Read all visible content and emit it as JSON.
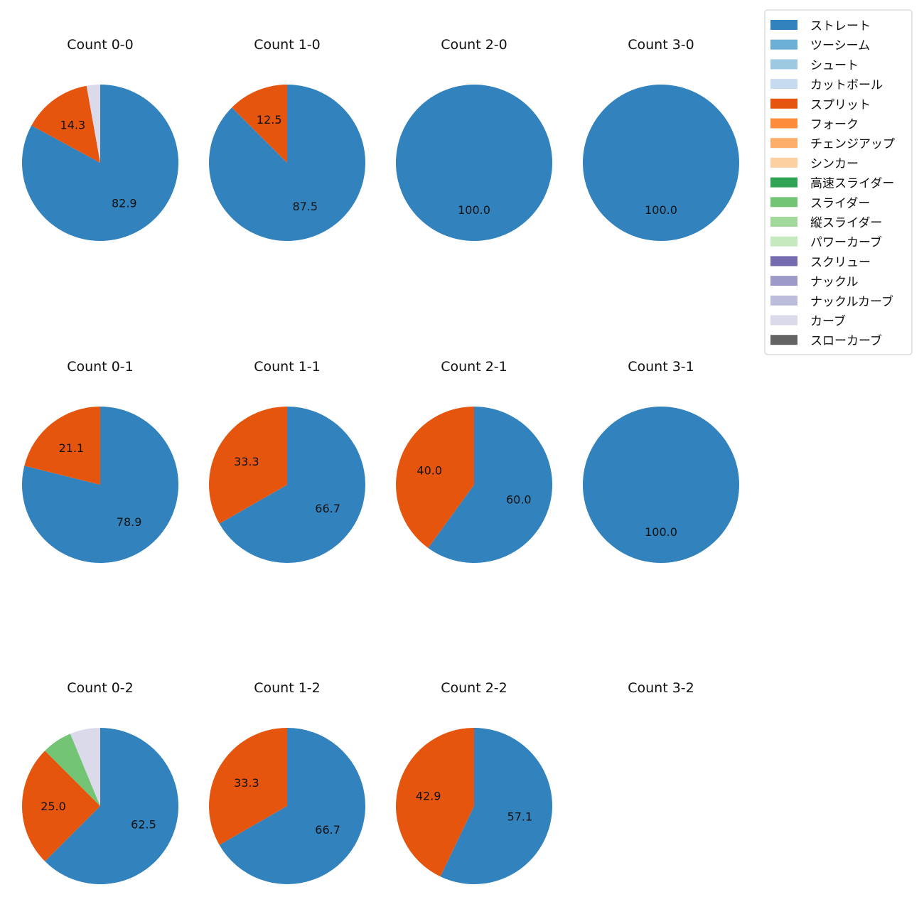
{
  "chart_data": {
    "type": "pie",
    "legend": {
      "placement": "top-right",
      "entries": [
        {
          "name": "ストレート",
          "color": "#3182bd"
        },
        {
          "name": "ツーシーム",
          "color": "#6baed6"
        },
        {
          "name": "シュート",
          "color": "#9ecae1"
        },
        {
          "name": "カットボール",
          "color": "#c6dbef"
        },
        {
          "name": "スプリット",
          "color": "#e6550d"
        },
        {
          "name": "フォーク",
          "color": "#fd8d3c"
        },
        {
          "name": "チェンジアップ",
          "color": "#fdae6b"
        },
        {
          "name": "シンカー",
          "color": "#fdd0a2"
        },
        {
          "name": "高速スライダー",
          "color": "#31a354"
        },
        {
          "name": "スライダー",
          "color": "#74c476"
        },
        {
          "name": "縦スライダー",
          "color": "#a1d99b"
        },
        {
          "name": "パワーカーブ",
          "color": "#c7e9c0"
        },
        {
          "name": "スクリュー",
          "color": "#756bb1"
        },
        {
          "name": "ナックル",
          "color": "#9e9ac8"
        },
        {
          "name": "ナックルカーブ",
          "color": "#bcbddc"
        },
        {
          "name": "カーブ",
          "color": "#dadaeb"
        },
        {
          "name": "スローカーブ",
          "color": "#636363"
        }
      ]
    },
    "charts": [
      {
        "title": "Count 0-0",
        "slices": [
          {
            "pitch": "ストレート",
            "value": 82.9,
            "label": "82.9"
          },
          {
            "pitch": "スプリット",
            "value": 14.3,
            "label": "14.3"
          },
          {
            "pitch": "カーブ",
            "value": 2.8,
            "label": ""
          }
        ]
      },
      {
        "title": "Count 1-0",
        "slices": [
          {
            "pitch": "ストレート",
            "value": 87.5,
            "label": "87.5"
          },
          {
            "pitch": "スプリット",
            "value": 12.5,
            "label": "12.5"
          }
        ]
      },
      {
        "title": "Count 2-0",
        "slices": [
          {
            "pitch": "ストレート",
            "value": 100.0,
            "label": "100.0"
          }
        ]
      },
      {
        "title": "Count 3-0",
        "slices": [
          {
            "pitch": "ストレート",
            "value": 100.0,
            "label": "100.0"
          }
        ]
      },
      {
        "title": "Count 0-1",
        "slices": [
          {
            "pitch": "ストレート",
            "value": 78.9,
            "label": "78.9"
          },
          {
            "pitch": "スプリット",
            "value": 21.1,
            "label": "21.1"
          }
        ]
      },
      {
        "title": "Count 1-1",
        "slices": [
          {
            "pitch": "ストレート",
            "value": 66.7,
            "label": "66.7"
          },
          {
            "pitch": "スプリット",
            "value": 33.3,
            "label": "33.3"
          }
        ]
      },
      {
        "title": "Count 2-1",
        "slices": [
          {
            "pitch": "ストレート",
            "value": 60.0,
            "label": "60.0"
          },
          {
            "pitch": "スプリット",
            "value": 40.0,
            "label": "40.0"
          }
        ]
      },
      {
        "title": "Count 3-1",
        "slices": [
          {
            "pitch": "ストレート",
            "value": 100.0,
            "label": "100.0"
          }
        ]
      },
      {
        "title": "Count 0-2",
        "slices": [
          {
            "pitch": "ストレート",
            "value": 62.5,
            "label": "62.5"
          },
          {
            "pitch": "スプリット",
            "value": 25.0,
            "label": "25.0"
          },
          {
            "pitch": "スライダー",
            "value": 6.25,
            "label": ""
          },
          {
            "pitch": "カーブ",
            "value": 6.25,
            "label": ""
          }
        ]
      },
      {
        "title": "Count 1-2",
        "slices": [
          {
            "pitch": "ストレート",
            "value": 66.7,
            "label": "66.7"
          },
          {
            "pitch": "スプリット",
            "value": 33.3,
            "label": "33.3"
          }
        ]
      },
      {
        "title": "Count 2-2",
        "slices": [
          {
            "pitch": "ストレート",
            "value": 57.1,
            "label": "57.1"
          },
          {
            "pitch": "スプリット",
            "value": 42.9,
            "label": "42.9"
          }
        ]
      },
      {
        "title": "Count 3-2",
        "slices": []
      }
    ]
  }
}
